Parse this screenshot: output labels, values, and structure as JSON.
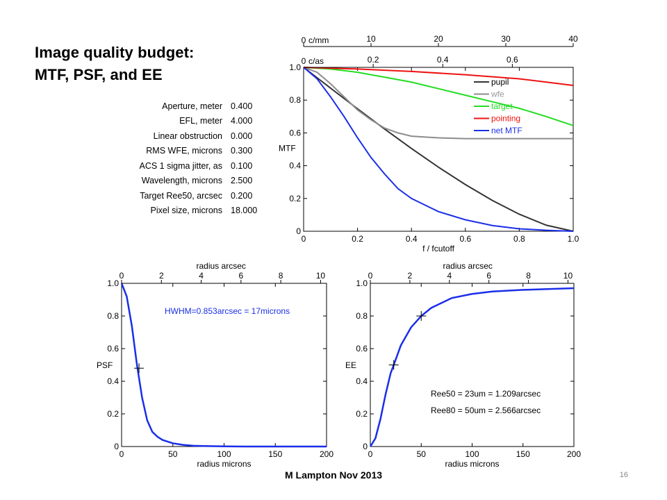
{
  "slide": {
    "title_line1": "Image quality budget:",
    "title_line2": "MTF,  PSF, and EE",
    "footer": "M Lampton Nov 2013",
    "page_number": "16"
  },
  "params": [
    {
      "label": "Aperture, meter",
      "value": "0.400"
    },
    {
      "label": "EFL, meter",
      "value": "4.000"
    },
    {
      "label": "Linear obstruction",
      "value": "0.000"
    },
    {
      "label": "RMS WFE, microns",
      "value": "0.300"
    },
    {
      "label": "ACS 1 sigma jitter, as",
      "value": "0.100"
    },
    {
      "label": "Wavelength, microns",
      "value": "2.500"
    },
    {
      "label": "Target Ree50, arcsec",
      "value": "0.200"
    },
    {
      "label": "Pixel size, microns",
      "value": "18.000"
    }
  ],
  "chart_data": [
    {
      "type": "line",
      "ylabel": "MTF",
      "xlabel": "f / fcutoff",
      "xlim": [
        0,
        1
      ],
      "ylim": [
        0,
        1
      ],
      "xticks": [
        "0",
        "0.2",
        "0.4",
        "0.6",
        "0.8",
        "1.0"
      ],
      "yticks": [
        "0",
        "0.2",
        "0.4",
        "0.6",
        "0.8",
        "1.0"
      ],
      "top_axis1": {
        "label": "c/mm",
        "ticks": [
          "0",
          "10",
          "20",
          "30",
          "40"
        ],
        "range": [
          0,
          40
        ]
      },
      "top_axis2": {
        "label": "c/as",
        "ticks": [
          "0.2",
          "0.4",
          "0.6"
        ],
        "range": [
          0,
          0.775
        ]
      },
      "legend": "top-right",
      "series": [
        {
          "name": "pupil",
          "color": "#333333",
          "x": [
            0,
            0.1,
            0.2,
            0.3,
            0.4,
            0.5,
            0.6,
            0.7,
            0.8,
            0.9,
            1.0
          ],
          "y": [
            1.0,
            0.873,
            0.747,
            0.624,
            0.505,
            0.391,
            0.285,
            0.188,
            0.104,
            0.037,
            0.0
          ]
        },
        {
          "name": "wfe",
          "color": "#8c8c8c",
          "x": [
            0,
            0.05,
            0.1,
            0.15,
            0.2,
            0.25,
            0.3,
            0.35,
            0.4,
            0.5,
            0.6,
            0.7,
            0.8,
            0.9,
            1.0
          ],
          "y": [
            1.0,
            0.97,
            0.9,
            0.82,
            0.74,
            0.68,
            0.63,
            0.6,
            0.58,
            0.57,
            0.565,
            0.565,
            0.565,
            0.565,
            0.565
          ]
        },
        {
          "name": "target",
          "color": "#22dd22",
          "x": [
            0,
            0.1,
            0.2,
            0.3,
            0.4,
            0.5,
            0.6,
            0.7,
            0.8,
            0.9,
            1.0
          ],
          "y": [
            1.0,
            0.99,
            0.97,
            0.94,
            0.91,
            0.87,
            0.83,
            0.79,
            0.75,
            0.7,
            0.645
          ]
        },
        {
          "name": "pointing",
          "color": "#ee1111",
          "x": [
            0,
            0.2,
            0.4,
            0.6,
            0.8,
            1.0
          ],
          "y": [
            1.0,
            0.99,
            0.975,
            0.955,
            0.93,
            0.89
          ]
        },
        {
          "name": "net MTF",
          "color": "#1a2ee8",
          "x": [
            0,
            0.05,
            0.1,
            0.15,
            0.2,
            0.25,
            0.3,
            0.35,
            0.4,
            0.45,
            0.5,
            0.6,
            0.7,
            0.8,
            0.9,
            1.0
          ],
          "y": [
            1.0,
            0.93,
            0.82,
            0.7,
            0.57,
            0.45,
            0.35,
            0.26,
            0.2,
            0.16,
            0.12,
            0.07,
            0.035,
            0.015,
            0.006,
            0.0
          ]
        }
      ]
    },
    {
      "type": "line",
      "ylabel": "PSF",
      "xlabel": "radius microns",
      "xlim": [
        0,
        200
      ],
      "ylim": [
        0,
        1
      ],
      "xticks": [
        "0",
        "50",
        "100",
        "150",
        "200"
      ],
      "yticks": [
        "0",
        "0.2",
        "0.4",
        "0.6",
        "0.8",
        "1.0"
      ],
      "top_axis": {
        "label": "radius arcsec",
        "ticks": [
          "0",
          "2",
          "4",
          "6",
          "8",
          "10"
        ],
        "range": [
          0,
          10.3
        ]
      },
      "annotation": "HWHM=0.853arcsec = 17microns",
      "marker": {
        "x": 17,
        "y": 0.48
      },
      "series": [
        {
          "color": "#1a2ee8",
          "x": [
            0,
            5,
            10,
            15,
            20,
            25,
            30,
            35,
            40,
            50,
            60,
            70,
            80,
            90,
            100,
            120,
            150,
            200
          ],
          "y": [
            1.0,
            0.92,
            0.74,
            0.5,
            0.3,
            0.16,
            0.09,
            0.06,
            0.04,
            0.02,
            0.01,
            0.005,
            0.003,
            0.002,
            0.001,
            0.0,
            0.0,
            0.0
          ]
        }
      ]
    },
    {
      "type": "line",
      "ylabel": "EE",
      "xlabel": "radius microns",
      "xlim": [
        0,
        200
      ],
      "ylim": [
        0,
        1
      ],
      "xticks": [
        "0",
        "50",
        "100",
        "150",
        "200"
      ],
      "yticks": [
        "0",
        "0.2",
        "0.4",
        "0.6",
        "0.8",
        "1.0"
      ],
      "top_axis": {
        "label": "radius arcsec",
        "ticks": [
          "0",
          "2",
          "4",
          "6",
          "8",
          "10"
        ],
        "range": [
          0,
          10.3
        ]
      },
      "annotations": [
        "Ree50 = 23um = 1.209arcsec",
        "Ree80 = 50um = 2.566arcsec"
      ],
      "markers": [
        {
          "x": 23,
          "y": 0.5
        },
        {
          "x": 50,
          "y": 0.8
        }
      ],
      "series": [
        {
          "color": "#1a2ee8",
          "x": [
            0,
            5,
            10,
            15,
            20,
            23,
            30,
            40,
            50,
            60,
            70,
            80,
            100,
            120,
            150,
            200
          ],
          "y": [
            0.0,
            0.05,
            0.17,
            0.32,
            0.45,
            0.5,
            0.62,
            0.73,
            0.8,
            0.85,
            0.88,
            0.91,
            0.935,
            0.95,
            0.96,
            0.97
          ]
        }
      ]
    }
  ]
}
